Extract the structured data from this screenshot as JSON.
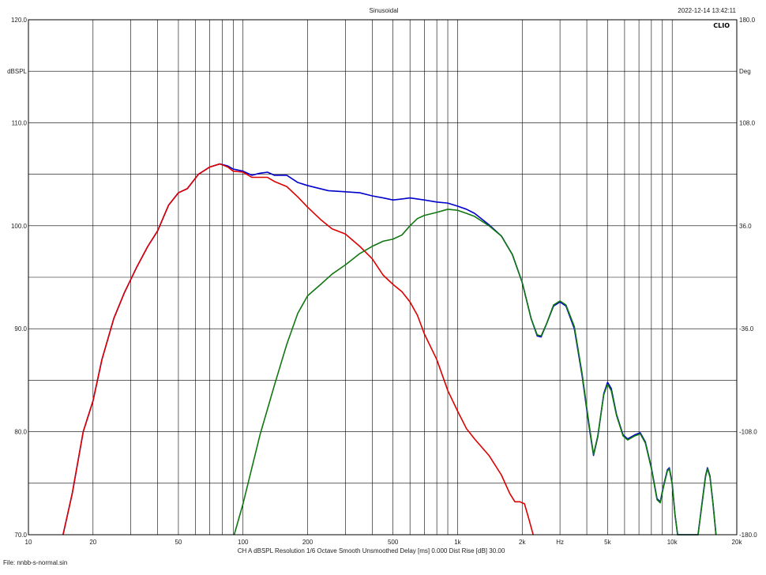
{
  "header": {
    "title": "Sinusoidal",
    "timestamp": "2022-12-14 13:42:11",
    "logo": "CLIO"
  },
  "footer": {
    "info": "CH A   dBSPL   Resolution 1/6 Octave   Smooth Unsmoothed   Delay [ms] 0.000   Dist Rise [dB] 30.00",
    "file": "File: nnbb-s-normal.sin"
  },
  "chart_data": {
    "type": "line",
    "title": "Sinusoidal",
    "xscale": "log",
    "xlim": [
      10,
      20000
    ],
    "ylim": [
      70,
      120
    ],
    "y2lim": [
      -180,
      180
    ],
    "ylabel": "dBSPL",
    "y2label": "Deg",
    "xlabel": "Hz",
    "grid": true,
    "x_ticks": [
      {
        "value": 10,
        "label": "10"
      },
      {
        "value": 20,
        "label": "20"
      },
      {
        "value": 50,
        "label": "50"
      },
      {
        "value": 100,
        "label": "100"
      },
      {
        "value": 200,
        "label": "200"
      },
      {
        "value": 500,
        "label": "500"
      },
      {
        "value": 1000,
        "label": "1k"
      },
      {
        "value": 2000,
        "label": "2k"
      },
      {
        "value": 5000,
        "label": "5k"
      },
      {
        "value": 10000,
        "label": "10k"
      },
      {
        "value": 20000,
        "label": "20k"
      }
    ],
    "xlabel_at": 3000,
    "y_ticks": [
      {
        "value": 70,
        "label": "70.0"
      },
      {
        "value": 80,
        "label": "80.0"
      },
      {
        "value": 90,
        "label": "90.0"
      },
      {
        "value": 100,
        "label": "100.0"
      },
      {
        "value": 110,
        "label": "110.0"
      },
      {
        "value": 120,
        "label": "120.0"
      }
    ],
    "ylabel_at": 115,
    "y2_ticks": [
      {
        "value": -180,
        "label": "-180.0"
      },
      {
        "value": -108,
        "label": "-108.0"
      },
      {
        "value": -36,
        "label": "-36.0"
      },
      {
        "value": 36,
        "label": "36.0"
      },
      {
        "value": 108,
        "label": "108.0"
      },
      {
        "value": 180,
        "label": "180.0"
      }
    ],
    "y2label_at": 144,
    "series": [
      {
        "color": "#0000cc",
        "points": [
          [
            14.5,
            70
          ],
          [
            16,
            74
          ],
          [
            18,
            80
          ],
          [
            20,
            83
          ],
          [
            22,
            87
          ],
          [
            25,
            91
          ],
          [
            28,
            93.5
          ],
          [
            32,
            96
          ],
          [
            36,
            98
          ],
          [
            40,
            99.5
          ],
          [
            45,
            102
          ],
          [
            50,
            103.2
          ],
          [
            55,
            103.6
          ],
          [
            62,
            105
          ],
          [
            70,
            105.7
          ],
          [
            78,
            106
          ],
          [
            85,
            105.8
          ],
          [
            90,
            105.5
          ],
          [
            100,
            105.3
          ],
          [
            110,
            104.9
          ],
          [
            120,
            105.1
          ],
          [
            130,
            105.2
          ],
          [
            140,
            104.9
          ],
          [
            160,
            104.9
          ],
          [
            180,
            104.2
          ],
          [
            200,
            103.9
          ],
          [
            250,
            103.4
          ],
          [
            300,
            103.3
          ],
          [
            350,
            103.2
          ],
          [
            400,
            102.9
          ],
          [
            450,
            102.7
          ],
          [
            500,
            102.5
          ],
          [
            550,
            102.6
          ],
          [
            600,
            102.7
          ],
          [
            650,
            102.6
          ],
          [
            700,
            102.5
          ],
          [
            800,
            102.3
          ],
          [
            900,
            102.2
          ],
          [
            1000,
            101.9
          ],
          [
            1100,
            101.6
          ],
          [
            1200,
            101.2
          ],
          [
            1400,
            100.1
          ],
          [
            1600,
            99
          ],
          [
            1800,
            97.2
          ],
          [
            2000,
            94.5
          ],
          [
            2200,
            91
          ],
          [
            2350,
            89.3
          ],
          [
            2450,
            89.2
          ],
          [
            2600,
            90.5
          ],
          [
            2800,
            92.2
          ],
          [
            3000,
            92.6
          ],
          [
            3200,
            92.2
          ],
          [
            3500,
            90
          ],
          [
            3800,
            85.5
          ],
          [
            4100,
            80.5
          ],
          [
            4300,
            77.7
          ],
          [
            4500,
            79.5
          ],
          [
            4800,
            83.7
          ],
          [
            5000,
            84.8
          ],
          [
            5200,
            84.2
          ],
          [
            5500,
            81.7
          ],
          [
            5900,
            79.7
          ],
          [
            6200,
            79.3
          ],
          [
            6700,
            79.7
          ],
          [
            7100,
            79.9
          ],
          [
            7500,
            79
          ],
          [
            8000,
            76.5
          ],
          [
            8500,
            73.5
          ],
          [
            8800,
            73.2
          ],
          [
            9100,
            74.7
          ],
          [
            9500,
            76.3
          ],
          [
            9700,
            76.5
          ],
          [
            10000,
            75
          ],
          [
            10300,
            72
          ],
          [
            10600,
            70
          ],
          [
            13200,
            70
          ],
          [
            13700,
            72.7
          ],
          [
            14300,
            75.7
          ],
          [
            14600,
            76.5
          ],
          [
            15000,
            75.7
          ],
          [
            15500,
            73
          ],
          [
            16000,
            70
          ]
        ]
      },
      {
        "color": "#dd0000",
        "points": [
          [
            14.5,
            70
          ],
          [
            16,
            74
          ],
          [
            18,
            80
          ],
          [
            20,
            83
          ],
          [
            22,
            87
          ],
          [
            25,
            91
          ],
          [
            28,
            93.5
          ],
          [
            32,
            96
          ],
          [
            36,
            98
          ],
          [
            40,
            99.5
          ],
          [
            45,
            102
          ],
          [
            50,
            103.2
          ],
          [
            55,
            103.6
          ],
          [
            62,
            105
          ],
          [
            70,
            105.7
          ],
          [
            78,
            106
          ],
          [
            85,
            105.7
          ],
          [
            90,
            105.3
          ],
          [
            100,
            105.2
          ],
          [
            110,
            104.7
          ],
          [
            120,
            104.7
          ],
          [
            130,
            104.7
          ],
          [
            140,
            104.3
          ],
          [
            160,
            103.8
          ],
          [
            180,
            102.8
          ],
          [
            200,
            101.8
          ],
          [
            230,
            100.6
          ],
          [
            260,
            99.7
          ],
          [
            300,
            99.2
          ],
          [
            350,
            98
          ],
          [
            400,
            96.8
          ],
          [
            450,
            95.2
          ],
          [
            500,
            94.3
          ],
          [
            550,
            93.6
          ],
          [
            600,
            92.6
          ],
          [
            650,
            91.3
          ],
          [
            700,
            89.5
          ],
          [
            800,
            87
          ],
          [
            900,
            84
          ],
          [
            1000,
            82
          ],
          [
            1100,
            80.3
          ],
          [
            1200,
            79.3
          ],
          [
            1400,
            77.7
          ],
          [
            1600,
            75.8
          ],
          [
            1750,
            74
          ],
          [
            1850,
            73.2
          ],
          [
            1950,
            73.2
          ],
          [
            2050,
            73
          ],
          [
            2150,
            71.5
          ],
          [
            2250,
            70
          ]
        ]
      },
      {
        "color": "#117711",
        "points": [
          [
            91,
            70
          ],
          [
            100,
            73
          ],
          [
            110,
            76.5
          ],
          [
            120,
            79.7
          ],
          [
            140,
            84.5
          ],
          [
            160,
            88.5
          ],
          [
            180,
            91.5
          ],
          [
            200,
            93.2
          ],
          [
            230,
            94.3
          ],
          [
            260,
            95.3
          ],
          [
            300,
            96.2
          ],
          [
            350,
            97.3
          ],
          [
            400,
            98
          ],
          [
            450,
            98.5
          ],
          [
            500,
            98.7
          ],
          [
            550,
            99.1
          ],
          [
            600,
            100
          ],
          [
            650,
            100.7
          ],
          [
            700,
            101
          ],
          [
            800,
            101.3
          ],
          [
            900,
            101.6
          ],
          [
            1000,
            101.5
          ],
          [
            1100,
            101.2
          ],
          [
            1200,
            100.9
          ],
          [
            1400,
            100
          ],
          [
            1600,
            99
          ],
          [
            1800,
            97.2
          ],
          [
            2000,
            94.5
          ],
          [
            2200,
            91
          ],
          [
            2350,
            89.4
          ],
          [
            2450,
            89.3
          ],
          [
            2600,
            90.5
          ],
          [
            2800,
            92.3
          ],
          [
            3000,
            92.7
          ],
          [
            3200,
            92.3
          ],
          [
            3500,
            90.2
          ],
          [
            3800,
            85.7
          ],
          [
            4100,
            80.7
          ],
          [
            4300,
            77.8
          ],
          [
            4500,
            79.6
          ],
          [
            4800,
            83.6
          ],
          [
            5000,
            84.6
          ],
          [
            5200,
            84
          ],
          [
            5500,
            81.6
          ],
          [
            5900,
            79.6
          ],
          [
            6200,
            79.2
          ],
          [
            6700,
            79.6
          ],
          [
            7100,
            79.8
          ],
          [
            7500,
            78.9
          ],
          [
            8000,
            76.4
          ],
          [
            8500,
            73.4
          ],
          [
            8800,
            73.1
          ],
          [
            9100,
            74.6
          ],
          [
            9500,
            76.2
          ],
          [
            9700,
            76.4
          ],
          [
            10000,
            74.9
          ],
          [
            10300,
            72
          ],
          [
            10600,
            70
          ],
          [
            13200,
            70
          ],
          [
            13700,
            72.6
          ],
          [
            14300,
            75.6
          ],
          [
            14600,
            76.4
          ],
          [
            15000,
            75.6
          ],
          [
            15500,
            73
          ],
          [
            16000,
            70
          ]
        ]
      }
    ]
  }
}
